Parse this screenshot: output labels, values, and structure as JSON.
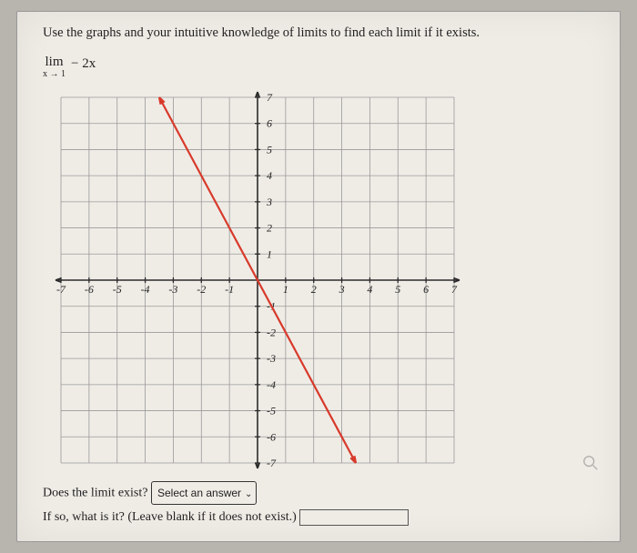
{
  "prompt": "Use the graphs and your intuitive knowledge of limits to find each limit if it exists.",
  "limit": {
    "lim": "lim",
    "subscript": "x → 1",
    "body": "− 2x"
  },
  "chart": {
    "type": "line",
    "xlim": [
      -7,
      7
    ],
    "ylim": [
      -7,
      7
    ],
    "xtick_step": 1,
    "ytick_step": 1,
    "xtick_labels": [
      "-7",
      "-6",
      "-5",
      "-4",
      "-3",
      "-2",
      "-1",
      "1",
      "2",
      "3",
      "4",
      "5",
      "6",
      "7"
    ],
    "ytick_labels": [
      "7",
      "6",
      "5",
      "4",
      "3",
      "2",
      "1",
      "-1",
      "-2",
      "-3",
      "-4",
      "-5",
      "-6",
      "-7"
    ],
    "grid_color": "#9a9a9a",
    "axis_color": "#2b2b2b",
    "background_color": "#efece6",
    "line_color": "#d83a2b",
    "line_width": 2.2,
    "tick_fontsize": 12,
    "tick_font_style": "italic",
    "series": {
      "x": [
        -3.5,
        3.5
      ],
      "y": [
        7,
        -7
      ]
    },
    "arrowheads": true
  },
  "footer": {
    "q1_label": "Does the limit exist?",
    "select_placeholder": "Select an answer",
    "q2_label": "If so, what is it? (Leave blank if it does not exist.)"
  }
}
